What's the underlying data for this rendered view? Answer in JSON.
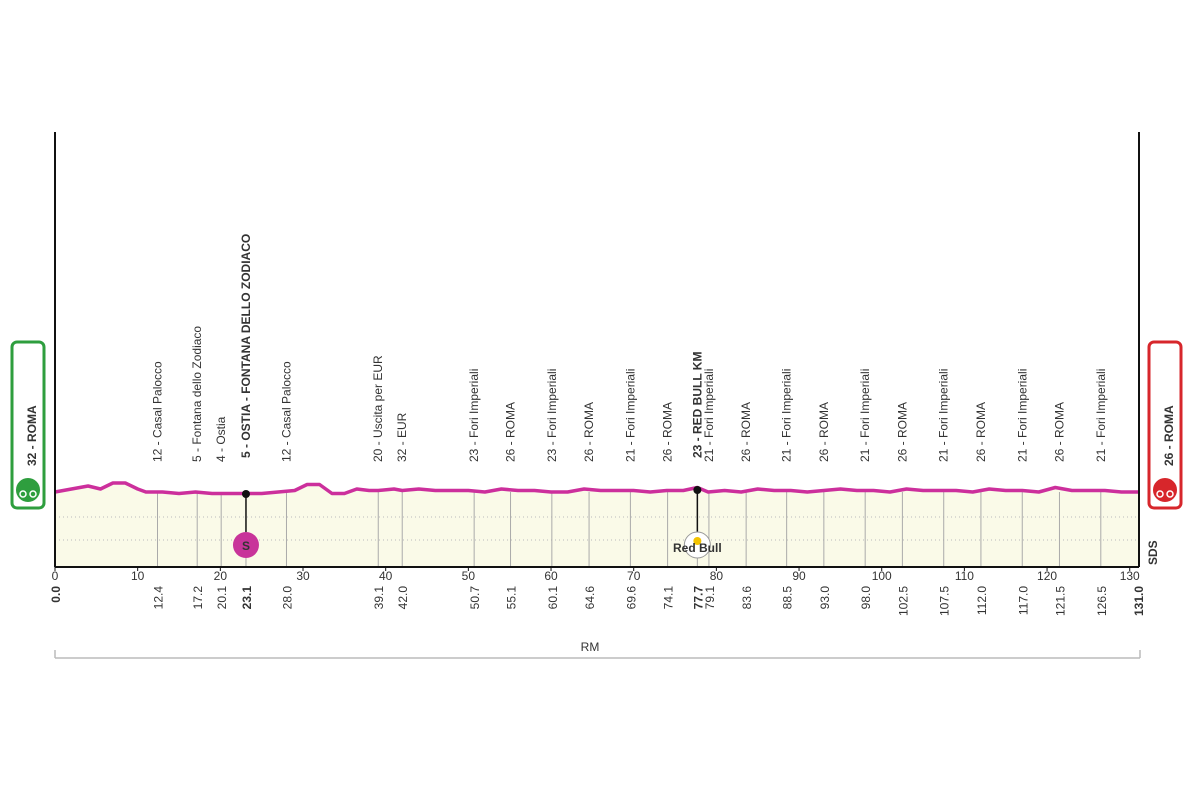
{
  "chart_data": {
    "type": "elevation-profile",
    "start": {
      "label": "32 - ROMA",
      "color": "#2e9e3e"
    },
    "finish": {
      "label": "26 - ROMA",
      "color": "#d7262b"
    },
    "profile_color": "#cc2f9c",
    "fill_color": "#fafae8",
    "xlim": [
      0,
      131
    ],
    "xticks": [
      0,
      10,
      20,
      30,
      40,
      50,
      60,
      70,
      80,
      90,
      100,
      110,
      120,
      130
    ],
    "profile": {
      "x": [
        0,
        2,
        4,
        5.5,
        7,
        8.5,
        10,
        11,
        13,
        15,
        17,
        19,
        21,
        23.1,
        25,
        27,
        29,
        30.5,
        32,
        33.5,
        35,
        36.5,
        38,
        39.1,
        41,
        42,
        44,
        46,
        48,
        50,
        52,
        54,
        56,
        58,
        60,
        62,
        64,
        66,
        68,
        70,
        72,
        74,
        76,
        77.7,
        79,
        81,
        83,
        85,
        87,
        89,
        91,
        93,
        95,
        97,
        99,
        101,
        103,
        105,
        107,
        109,
        111,
        113,
        115,
        117,
        119,
        121,
        123,
        125,
        127,
        129,
        131
      ],
      "values": [
        25,
        26,
        27,
        26,
        28,
        28,
        26,
        25,
        25,
        24.5,
        25,
        24.5,
        24.5,
        24.5,
        24.5,
        25,
        25.5,
        27.5,
        27.5,
        24.5,
        24.5,
        26,
        25.5,
        25.5,
        26,
        25.5,
        26,
        25.5,
        25.5,
        25.5,
        25,
        26,
        25.5,
        25.5,
        25,
        25,
        26,
        25.5,
        25.5,
        25.5,
        25,
        25.5,
        25.5,
        26.5,
        25,
        25.5,
        25,
        26,
        25.5,
        25.5,
        25,
        25.5,
        26,
        25.5,
        25.5,
        25,
        26,
        25.5,
        25.5,
        25.5,
        25,
        26,
        25.5,
        25.5,
        25,
        26.5,
        25.5,
        25.5,
        25.5,
        25,
        25
      ]
    },
    "waypoints": {
      "values": [
        0,
        12.4,
        17.2,
        20.1,
        23.1,
        28,
        39.1,
        42,
        50.7,
        55.1,
        60.1,
        64.6,
        69.6,
        74.1,
        77.7,
        79.1,
        83.6,
        88.5,
        93,
        98,
        102.5,
        107.5,
        112,
        117,
        121.5,
        126.5,
        131
      ],
      "value_labels": [
        "0.0",
        "12.4",
        "17.2",
        "20.1",
        "23.1",
        "28.0",
        "39.1",
        "42.0",
        "50.7",
        "55.1",
        "60.1",
        "64.6",
        "69.6",
        "74.1",
        "77.7",
        "79.1",
        "83.6",
        "88.5",
        "93.0",
        "98.0",
        "102.5",
        "107.5",
        "112.0",
        "117.0",
        "121.5",
        "126.5",
        "131.0"
      ],
      "names": [
        null,
        "12 - Casal Palocco",
        "5 - Fontana dello Zodiaco",
        "4 - Ostia",
        "5 - OSTIA - FONTANA DELLO ZODIACO",
        "12 - Casal Palocco",
        "20 - Uscita per EUR",
        "32 - EUR",
        "23 - Fori Imperiali",
        "26 - ROMA",
        "23 - Fori Imperiali",
        "26 - ROMA",
        "21 - Fori Imperiali",
        "26 - ROMA",
        "23 - RED BULL KM",
        "21 - Fori Imperiali",
        "26 - ROMA",
        "21 - Fori Imperiali",
        "26 - ROMA",
        "21 - Fori Imperiali",
        "26 - ROMA",
        "21 - Fori Imperiali",
        "26 - ROMA",
        "21 - Fori Imperiali",
        "26 - ROMA",
        "21 - Fori Imperiali",
        null
      ],
      "bold": [
        true,
        false,
        false,
        false,
        true,
        false,
        false,
        false,
        false,
        false,
        false,
        false,
        false,
        false,
        true,
        false,
        false,
        false,
        false,
        false,
        false,
        false,
        false,
        false,
        false,
        false,
        true
      ]
    },
    "sprint": {
      "label": "S",
      "km": 23.1,
      "color": "#c8349a"
    },
    "red_bull": {
      "label": "Red Bull",
      "km": 77.7
    },
    "annotation": "0",
    "province": "RM",
    "brand": "SDS"
  }
}
